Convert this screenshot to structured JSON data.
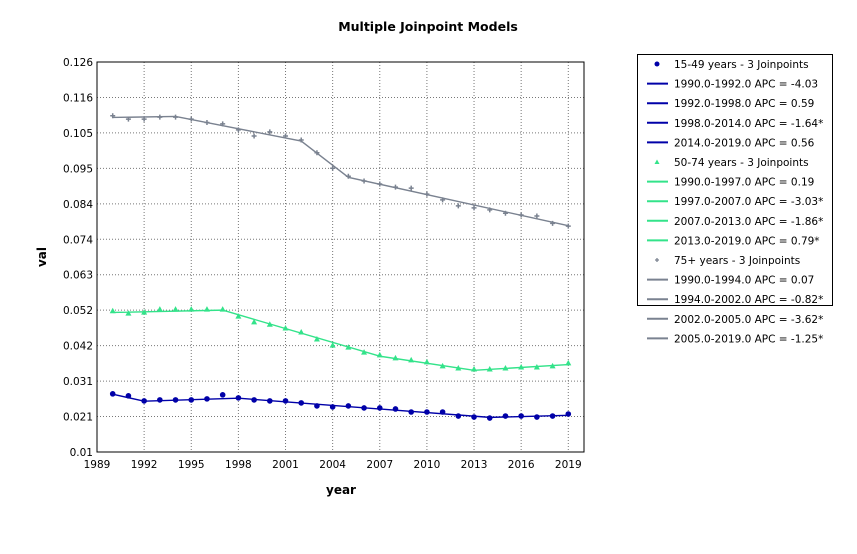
{
  "chart_data": {
    "type": "line",
    "title": "Multiple Joinpoint Models",
    "xlabel": "year",
    "ylabel": "val",
    "xlim": [
      1989,
      2020
    ],
    "ylim": [
      0.01,
      0.126
    ],
    "x_ticks": [
      1989,
      1992,
      1995,
      1998,
      2001,
      2004,
      2007,
      2010,
      2013,
      2016,
      2019
    ],
    "y_ticks": [
      "0.01",
      "0.021",
      "0.031",
      "0.042",
      "0.052",
      "0.063",
      "0.074",
      "0.084",
      "0.095",
      "0.105",
      "0.116",
      "0.126"
    ],
    "grid": true,
    "legend_position": "right",
    "x": [
      1990,
      1991,
      1992,
      1993,
      1994,
      1995,
      1996,
      1997,
      1998,
      1999,
      2000,
      2001,
      2002,
      2003,
      2004,
      2005,
      2006,
      2007,
      2008,
      2009,
      2010,
      2011,
      2012,
      2013,
      2014,
      2015,
      2016,
      2017,
      2018,
      2019
    ],
    "series": [
      {
        "name": "15-49 years - 3 Joinpoints",
        "color": "#0000a8",
        "marker": "circle",
        "values": [
          0.0273,
          0.0267,
          0.0252,
          0.0255,
          0.0255,
          0.0255,
          0.0258,
          0.027,
          0.0261,
          0.0255,
          0.0252,
          0.0252,
          0.0246,
          0.0237,
          0.0234,
          0.0237,
          0.0231,
          0.0231,
          0.0228,
          0.0219,
          0.0219,
          0.0219,
          0.0207,
          0.0204,
          0.0201,
          0.0207,
          0.0207,
          0.0204,
          0.0207,
          0.0213
        ],
        "fit": {
          "x": [
            1990,
            1992,
            1998,
            2014,
            2019
          ],
          "y": [
            0.0272,
            0.0251,
            0.026,
            0.0203,
            0.0209
          ]
        },
        "segments": [
          "1990.0-1992.0 APC  =  -4.03",
          "1992.0-1998.0 APC  =   0.59",
          "1998.0-2014.0 APC  =  -1.64*",
          "2014.0-2019.0 APC  =   0.56"
        ]
      },
      {
        "name": "50-74 years - 3 Joinpoints",
        "color": "#33e38a",
        "marker": "triangle",
        "values": [
          0.052,
          0.0513,
          0.0516,
          0.0525,
          0.0525,
          0.0525,
          0.0525,
          0.0525,
          0.0504,
          0.0487,
          0.048,
          0.0469,
          0.0457,
          0.0436,
          0.0418,
          0.0412,
          0.0397,
          0.0389,
          0.038,
          0.0374,
          0.0368,
          0.0356,
          0.035,
          0.0347,
          0.0347,
          0.035,
          0.0353,
          0.0353,
          0.0356,
          0.0365
        ],
        "fit": {
          "x": [
            1990,
            1997,
            2007,
            2013,
            2019
          ],
          "y": [
            0.0515,
            0.0522,
            0.0385,
            0.0343,
            0.036
          ]
        },
        "segments": [
          "1990.0-1997.0 APC  =   0.19",
          "1997.0-2007.0 APC  =  -3.03*",
          "2007.0-2013.0 APC  =  -1.86*",
          "2013.0-2019.0 APC  =   0.79*"
        ]
      },
      {
        "name": "75+ years - 3 Joinpoints",
        "color": "#7a8290",
        "marker": "plus",
        "values": [
          0.11,
          0.109,
          0.109,
          0.1096,
          0.1096,
          0.109,
          0.108,
          0.1076,
          0.1058,
          0.104,
          0.1052,
          0.104,
          0.1028,
          0.099,
          0.0944,
          0.092,
          0.0906,
          0.0897,
          0.0888,
          0.0885,
          0.0867,
          0.085,
          0.0832,
          0.0826,
          0.082,
          0.081,
          0.0805,
          0.0802,
          0.078,
          0.0772
        ],
        "fit": {
          "x": [
            1990,
            1994,
            2002,
            2005,
            2019
          ],
          "y": [
            0.1095,
            0.1098,
            0.1025,
            0.0917,
            0.0773
          ]
        },
        "segments": [
          "1990.0-1994.0 APC  =   0.07",
          "1994.0-2002.0 APC  =  -0.82*",
          "2002.0-2005.0 APC  =  -3.62*",
          "2005.0-2019.0 APC  =  -1.25*"
        ]
      }
    ]
  }
}
